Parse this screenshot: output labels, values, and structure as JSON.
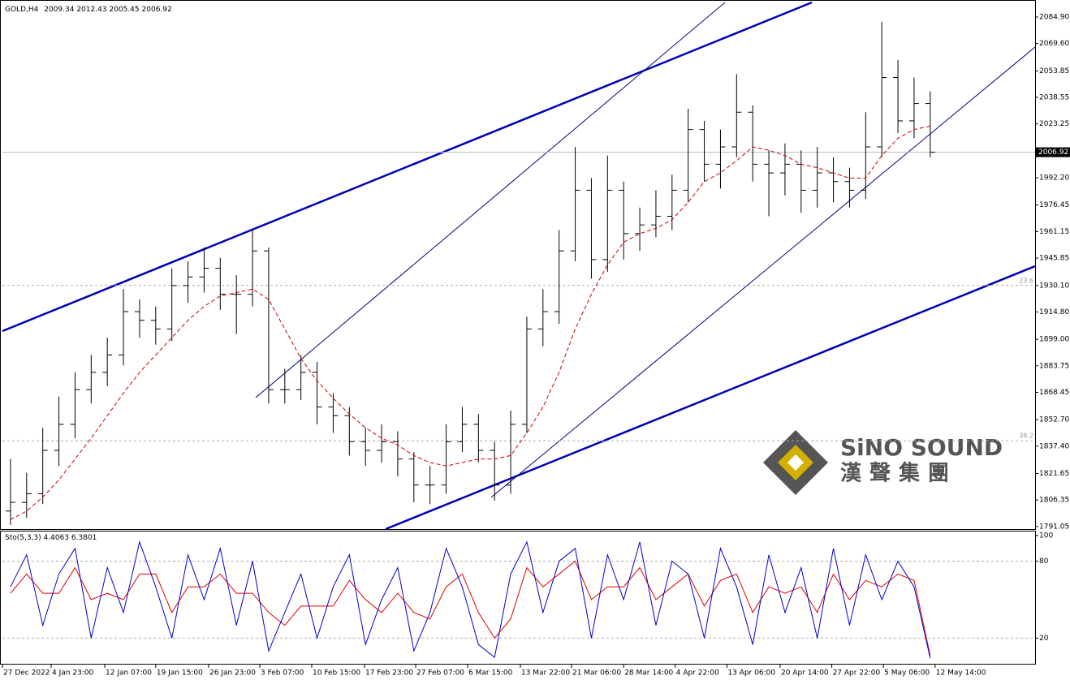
{
  "chart_data": [
    {
      "type": "ohlc",
      "symbol": "GOLD,H4",
      "last_bar": {
        "open": 2009.34,
        "high": 2012.43,
        "low": 2005.45,
        "close": 2006.92
      },
      "xlim": [
        -0.5,
        63.5
      ],
      "xticks": [
        {
          "value": -0.5,
          "label": "27 Dec 2022"
        },
        {
          "value": 2.52,
          "label": "4 Jan 23:00"
        },
        {
          "value": 5.84,
          "label": "12 Jan 07:00"
        },
        {
          "value": 9.0,
          "label": "19 Jan 15:00"
        },
        {
          "value": 12.28,
          "label": "26 Jan 23:00"
        },
        {
          "value": 15.45,
          "label": "3 Feb 07:00"
        },
        {
          "value": 18.67,
          "label": "10 Feb 15:00"
        },
        {
          "value": 21.94,
          "label": "17 Feb 23:00"
        },
        {
          "value": 25.11,
          "label": "27 Feb 07:00"
        },
        {
          "value": 28.33,
          "label": "6 Mar 15:00"
        },
        {
          "value": 31.6,
          "label": "13 Mar 22:00"
        },
        {
          "value": 34.77,
          "label": "21 Mar 06:00"
        },
        {
          "value": 38.0,
          "label": "28 Mar 14:00"
        },
        {
          "value": 41.2,
          "label": "4 Apr 22:00"
        },
        {
          "value": 44.4,
          "label": "13 Apr 06:00"
        },
        {
          "value": 47.7,
          "label": "20 Apr 14:00"
        },
        {
          "value": 50.9,
          "label": "27 Apr 22:00"
        },
        {
          "value": 54.1,
          "label": "5 May 06:00"
        },
        {
          "value": 57.3,
          "label": "12 May 14:00"
        }
      ],
      "ylim": [
        1789.6,
        2093.3
      ],
      "yticks": [
        {
          "value": 2084.9,
          "label": "2084.90"
        },
        {
          "value": 2069.6,
          "label": "2069.60"
        },
        2053.85,
        2038.55,
        2023.25,
        {
          "value": 1992.2,
          "label": "1992.20"
        },
        1976.45,
        1961.15,
        1945.85,
        {
          "value": 1930.1,
          "label": "1930.10"
        },
        {
          "value": 1914.8,
          "label": "1914.80"
        },
        {
          "value": 1899,
          "label": "1899.00"
        },
        1883.75,
        1868.45,
        {
          "value": 1852.7,
          "label": "1852.70"
        },
        {
          "value": 1837.4,
          "label": "1837.40"
        },
        1821.65,
        1806.35,
        1791.05
      ],
      "fib_levels": [
        {
          "label": "23.6",
          "price": 1930.1
        },
        {
          "label": "38.2",
          "price": 1840.5
        }
      ],
      "open": [
        1800,
        1805,
        1810,
        1835,
        1850,
        1870,
        1880,
        1890,
        1915,
        1910,
        1905,
        1930,
        1935,
        1940,
        1925,
        1925,
        1950,
        1870,
        1870,
        1880,
        1860,
        1855,
        1840,
        1835,
        1840,
        1830,
        1815,
        1815,
        1840,
        1850,
        1835,
        1815,
        1850,
        1905,
        1915,
        1950,
        1985,
        1945,
        1985,
        1960,
        1965,
        1970,
        1985,
        2020,
        2000,
        2010,
        2030,
        2000,
        1995,
        2000,
        1985,
        1995,
        1990,
        1985,
        2010,
        2050,
        2025,
        2035
      ],
      "high": [
        1830,
        1822,
        1848,
        1866,
        1880,
        1890,
        1900,
        1928,
        1922,
        1918,
        1940,
        1944,
        1952,
        1946,
        1936,
        1962,
        1952,
        1882,
        1890,
        1886,
        1868,
        1860,
        1848,
        1850,
        1846,
        1834,
        1826,
        1850,
        1860,
        1856,
        1840,
        1858,
        1912,
        1928,
        1962,
        2010,
        1992,
        2005,
        1990,
        1975,
        1985,
        1994,
        2032,
        2025,
        2020,
        2052,
        2034,
        2008,
        2012,
        2008,
        2010,
        2004,
        1998,
        2030,
        2082,
        2060,
        2050,
        2042
      ],
      "low": [
        1792,
        1796,
        1804,
        1826,
        1842,
        1862,
        1872,
        1884,
        1900,
        1896,
        1898,
        1920,
        1926,
        1916,
        1902,
        1918,
        1862,
        1862,
        1864,
        1850,
        1845,
        1832,
        1826,
        1828,
        1820,
        1805,
        1804,
        1810,
        1834,
        1828,
        1806,
        1810,
        1845,
        1895,
        1908,
        1944,
        1934,
        1938,
        1945,
        1950,
        1958,
        1962,
        1978,
        1990,
        1986,
        2004,
        1990,
        1970,
        1982,
        1972,
        1975,
        1978,
        1975,
        1980,
        2004,
        2018,
        2015,
        2004
      ],
      "close": [
        1805,
        1810,
        1835,
        1850,
        1870,
        1880,
        1890,
        1915,
        1910,
        1905,
        1930,
        1935,
        1940,
        1925,
        1925,
        1950,
        1870,
        1870,
        1880,
        1860,
        1855,
        1840,
        1835,
        1840,
        1830,
        1815,
        1815,
        1840,
        1850,
        1835,
        1815,
        1850,
        1905,
        1915,
        1950,
        1985,
        1945,
        1985,
        1960,
        1965,
        1970,
        1985,
        2020,
        2000,
        2010,
        2030,
        2000,
        1995,
        2000,
        1985,
        1995,
        1990,
        1985,
        2010,
        2050,
        2025,
        2035,
        2006.92
      ],
      "bar_color": "#000000",
      "ma": [
        1795,
        1800,
        1808,
        1818,
        1830,
        1842,
        1855,
        1868,
        1880,
        1890,
        1900,
        1910,
        1918,
        1924,
        1926,
        1928,
        1922,
        1905,
        1888,
        1875,
        1865,
        1856,
        1848,
        1842,
        1838,
        1832,
        1828,
        1826,
        1828,
        1830,
        1830,
        1832,
        1845,
        1860,
        1880,
        1905,
        1925,
        1942,
        1955,
        1960,
        1963,
        1968,
        1978,
        1990,
        1995,
        2002,
        2010,
        2008,
        2005,
        2000,
        1998,
        1995,
        1992,
        1992,
        2005,
        2015,
        2020,
        2022
      ],
      "ma_color": "#cc0000",
      "watermark": {
        "name": "SiNO SOUND",
        "chinese": "漢聲集團"
      }
    },
    {
      "type": "stochastic",
      "name": "Sto(5,3,3)",
      "xlim": [
        -0.5,
        63.5
      ],
      "ylim": [
        0,
        100
      ],
      "yticks": [
        20,
        80,
        100
      ],
      "levels": [
        20,
        80
      ],
      "series": [
        {
          "color": "#0000cc",
          "values": [
            60,
            85,
            30,
            70,
            90,
            20,
            75,
            40,
            95,
            60,
            20,
            85,
            50,
            90,
            30,
            80,
            10,
            40,
            70,
            20,
            60,
            85,
            15,
            50,
            75,
            10,
            40,
            90,
            60,
            15,
            5,
            70,
            95,
            40,
            80,
            90,
            20,
            85,
            50,
            95,
            30,
            80,
            70,
            20,
            90,
            60,
            15,
            85,
            40,
            75,
            20,
            90,
            30,
            85,
            50,
            80,
            60,
            4.4063
          ]
        },
        {
          "color": "#dd0000",
          "values": [
            55,
            70,
            55,
            55,
            75,
            50,
            55,
            50,
            70,
            70,
            40,
            60,
            60,
            70,
            55,
            55,
            40,
            30,
            45,
            45,
            45,
            65,
            50,
            40,
            55,
            40,
            35,
            60,
            70,
            40,
            20,
            35,
            75,
            60,
            70,
            80,
            50,
            60,
            60,
            75,
            50,
            60,
            70,
            45,
            65,
            70,
            40,
            60,
            55,
            60,
            40,
            70,
            50,
            65,
            60,
            70,
            65,
            6.3801
          ]
        }
      ]
    }
  ]
}
